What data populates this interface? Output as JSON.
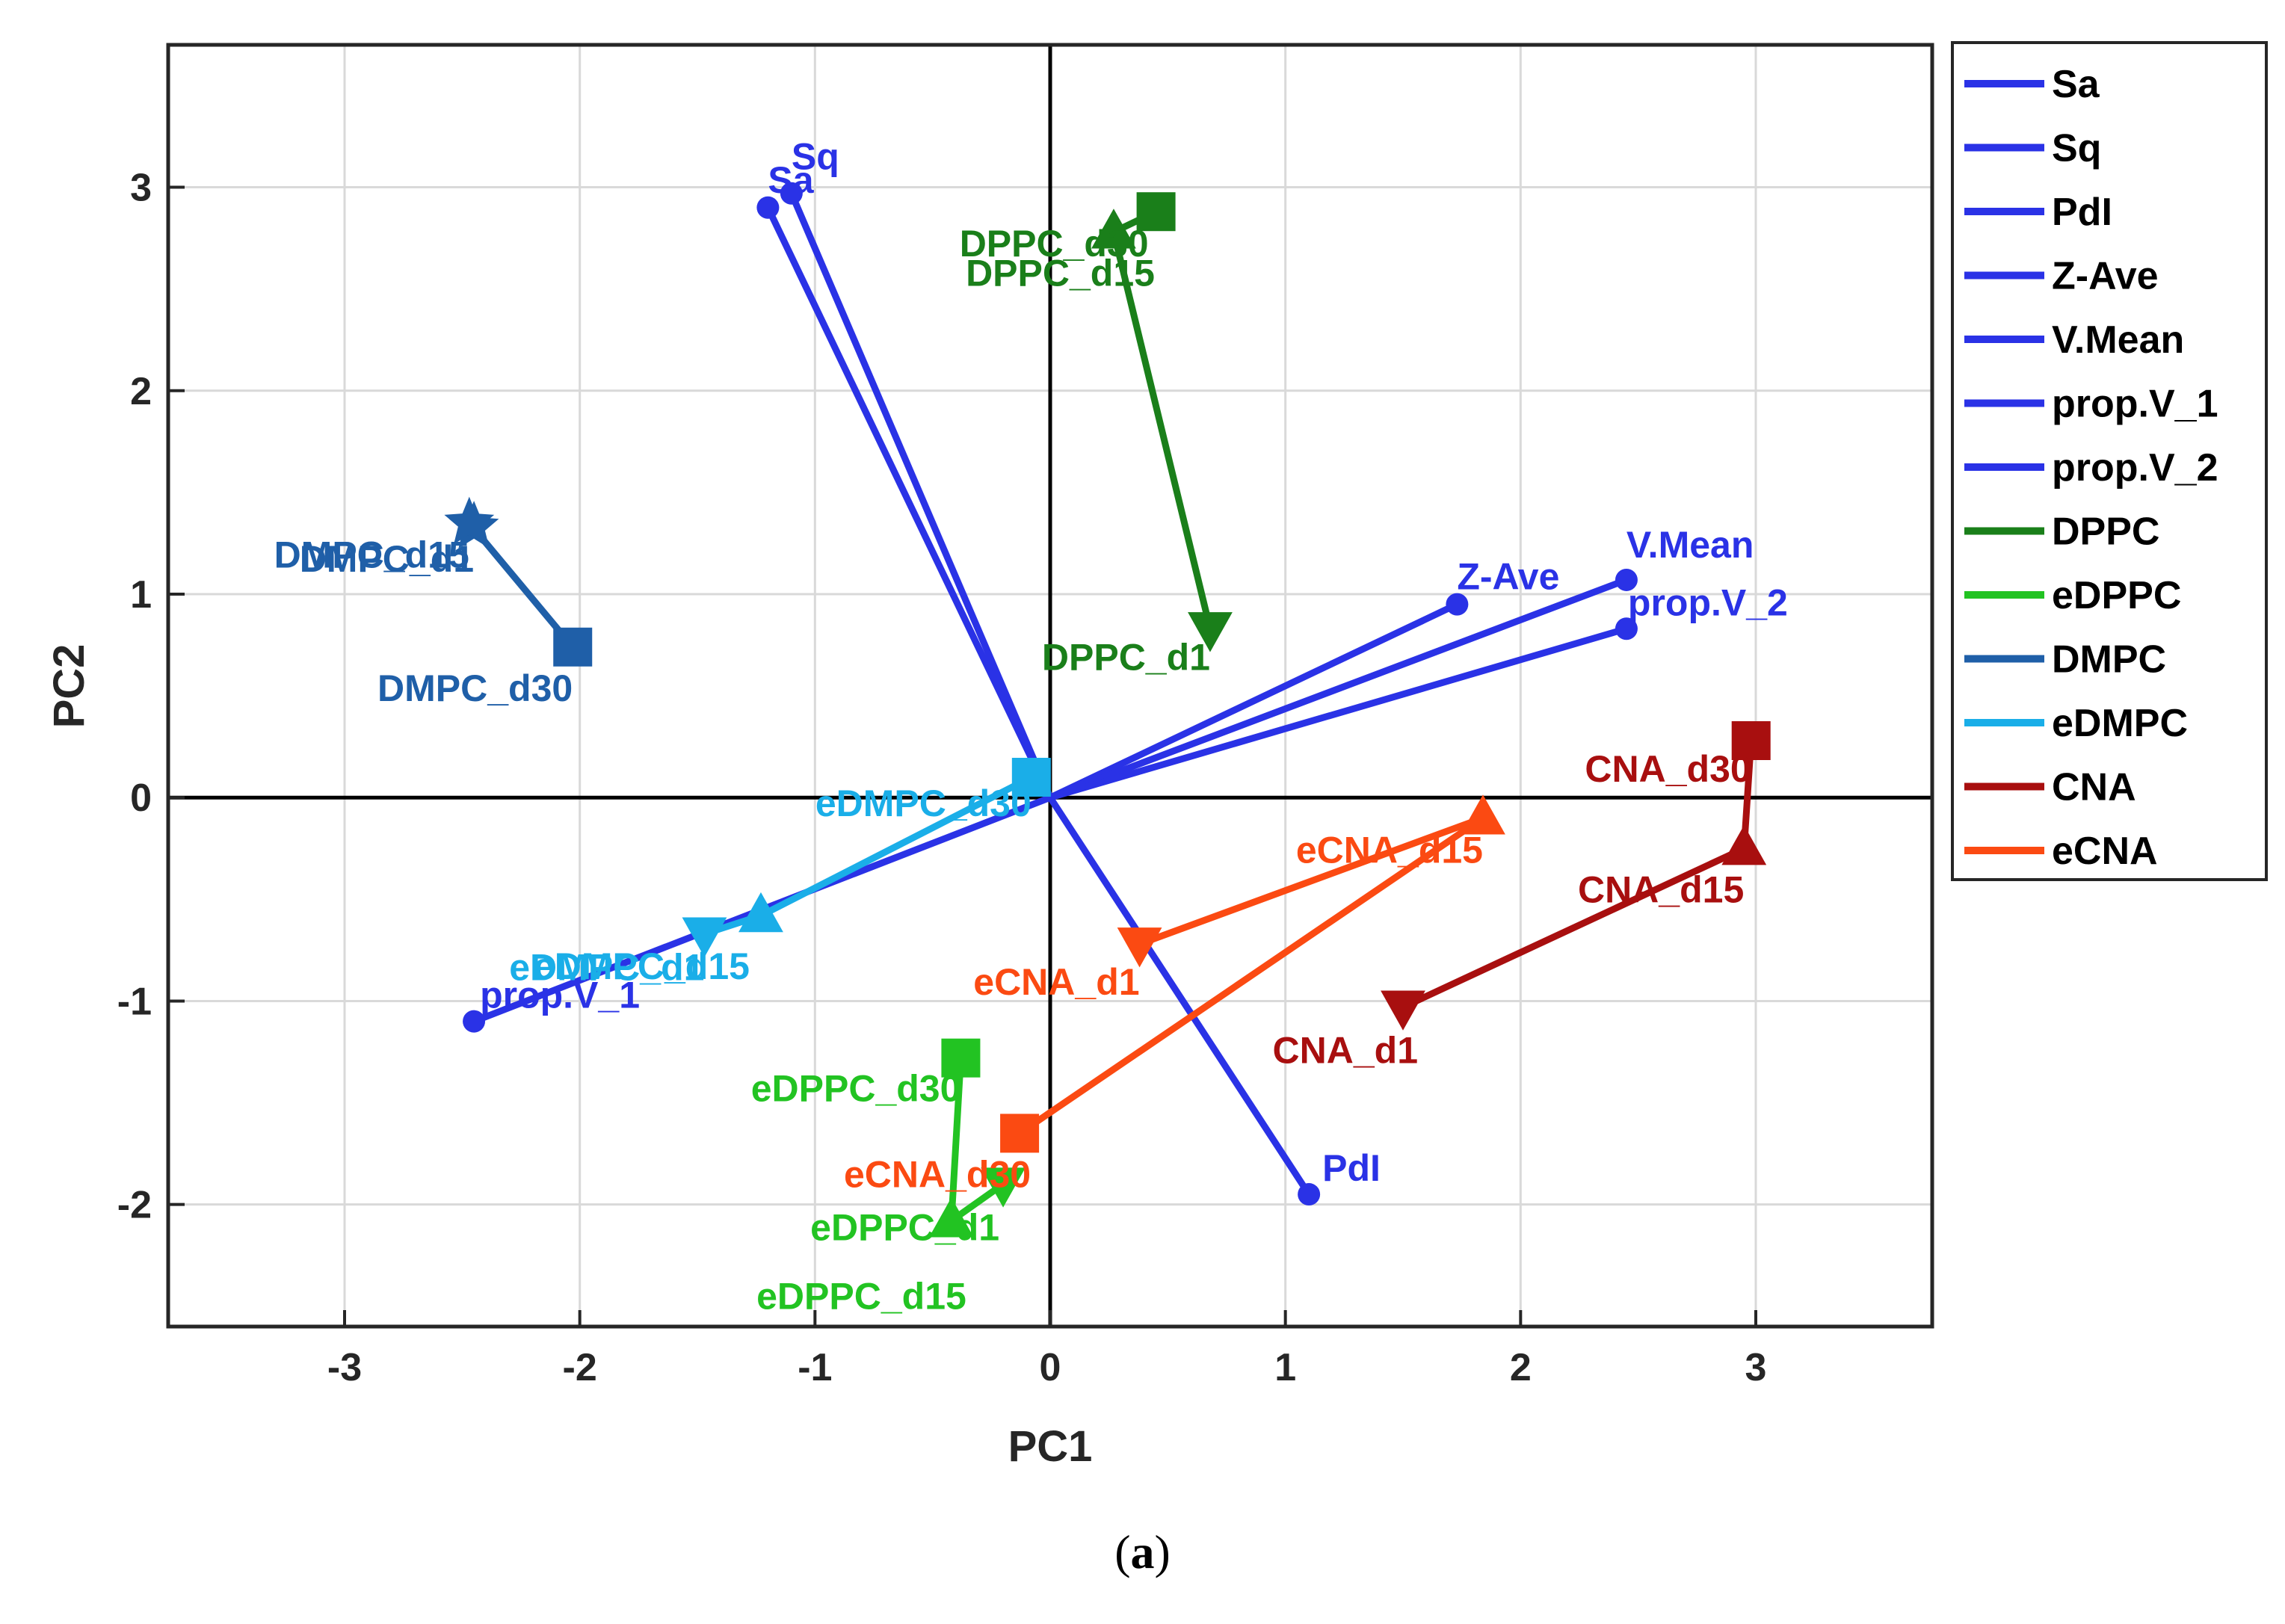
{
  "chart_data": {
    "type": "scatter",
    "subtype": "pca-biplot",
    "xlabel": "PC1",
    "ylabel": "PC2",
    "xlim": [
      -3.75,
      3.75
    ],
    "ylim": [
      -2.6,
      3.7
    ],
    "xticks": [
      -3,
      -2,
      -1,
      0,
      1,
      2,
      3
    ],
    "xtick_labels": [
      "-3",
      "-2",
      "-1",
      "0",
      "1",
      "2",
      "3"
    ],
    "yticks": [
      -2,
      -1,
      0,
      1,
      2,
      3
    ],
    "ytick_labels": [
      "-2",
      "-1",
      "0",
      "1",
      "2",
      "3"
    ],
    "grid": true,
    "legend_position": "outside-right",
    "loadings": [
      {
        "name": "Sa",
        "x": -1.2,
        "y": 2.9,
        "label": "Sa"
      },
      {
        "name": "Sq",
        "x": -1.1,
        "y": 2.97,
        "label": "Sq"
      },
      {
        "name": "PdI",
        "x": 1.1,
        "y": -1.95,
        "label": "PdI"
      },
      {
        "name": "Z-Ave",
        "x": 1.73,
        "y": 0.95,
        "label": "Z-Ave"
      },
      {
        "name": "V.Mean",
        "x": 2.45,
        "y": 1.07,
        "label": "V.Mean"
      },
      {
        "name": "prop.V_1",
        "x": -2.45,
        "y": -1.1,
        "label": "prop.V_1"
      },
      {
        "name": "prop.V_2",
        "x": 2.45,
        "y": 0.83,
        "label": "prop.V_2"
      }
    ],
    "series": [
      {
        "name": "DPPC",
        "color": "#1a7f1a",
        "points": [
          {
            "label": "DPPC_d1",
            "x": 0.68,
            "y": 0.83,
            "marker": "triangle-down"
          },
          {
            "label": "DPPC_d15",
            "x": 0.27,
            "y": 2.78,
            "marker": "triangle-up"
          },
          {
            "label": "DPPC_d30",
            "x": 0.45,
            "y": 2.88,
            "marker": "square"
          }
        ]
      },
      {
        "name": "eDPPC",
        "color": "#22c322",
        "points": [
          {
            "label": "eDPPC_d1",
            "x": -0.2,
            "y": -1.9,
            "marker": "triangle-down"
          },
          {
            "label": "eDPPC_d15",
            "x": -0.42,
            "y": -2.08,
            "marker": "triangle-up"
          },
          {
            "label": "eDPPC_d30",
            "x": -0.38,
            "y": -1.28,
            "marker": "square"
          }
        ]
      },
      {
        "name": "DMPC",
        "color": "#1f5fa8",
        "points": [
          {
            "label": "DMPC_d1",
            "x": -2.45,
            "y": 1.33,
            "marker": "star"
          },
          {
            "label": "DMPC_d15",
            "x": -2.47,
            "y": 1.35,
            "marker": "star"
          },
          {
            "label": "DMPC_d30",
            "x": -2.03,
            "y": 0.74,
            "marker": "square"
          }
        ]
      },
      {
        "name": "eDMPC",
        "color": "#1aaee8",
        "points": [
          {
            "label": "eDMPC_d1",
            "x": -1.47,
            "y": -0.67,
            "marker": "triangle-down"
          },
          {
            "label": "eDMPC_d15",
            "x": -1.23,
            "y": -0.58,
            "marker": "triangle-up"
          },
          {
            "label": "eDMPC_d30",
            "x": -0.08,
            "y": 0.1,
            "marker": "square"
          }
        ]
      },
      {
        "name": "CNA",
        "color": "#a80f0f",
        "points": [
          {
            "label": "CNA_d1",
            "x": 1.5,
            "y": -1.03,
            "marker": "triangle-down"
          },
          {
            "label": "CNA_d15",
            "x": 2.95,
            "y": -0.25,
            "marker": "triangle-up"
          },
          {
            "label": "CNA_d30",
            "x": 2.98,
            "y": 0.28,
            "marker": "square"
          }
        ]
      },
      {
        "name": "eCNA",
        "color": "#fb4a12",
        "points": [
          {
            "label": "eCNA_d1",
            "x": 0.38,
            "y": -0.72,
            "marker": "triangle-down"
          },
          {
            "label": "eCNA_d15",
            "x": 1.84,
            "y": -0.1,
            "marker": "triangle-up"
          },
          {
            "label": "eCNA_d30",
            "x": -0.13,
            "y": -1.65,
            "marker": "square"
          }
        ]
      }
    ],
    "legend": [
      {
        "label": "Sa",
        "color": "#2a32e6"
      },
      {
        "label": "Sq",
        "color": "#2a32e6"
      },
      {
        "label": "PdI",
        "color": "#2a32e6"
      },
      {
        "label": "Z-Ave",
        "color": "#2a32e6"
      },
      {
        "label": "V.Mean",
        "color": "#2a32e6"
      },
      {
        "label": "prop.V_1",
        "color": "#2a32e6"
      },
      {
        "label": "prop.V_2",
        "color": "#2a32e6"
      },
      {
        "label": "DPPC",
        "color": "#1a7f1a"
      },
      {
        "label": "eDPPC",
        "color": "#22c322"
      },
      {
        "label": "DMPC",
        "color": "#1f5fa8"
      },
      {
        "label": "eDMPC",
        "color": "#1aaee8"
      },
      {
        "label": "CNA",
        "color": "#a80f0f"
      },
      {
        "label": "eCNA",
        "color": "#fb4a12"
      }
    ],
    "loading_color": "#2a32e6"
  },
  "caption": {
    "open": "(",
    "letter": "a",
    "close": ")"
  }
}
